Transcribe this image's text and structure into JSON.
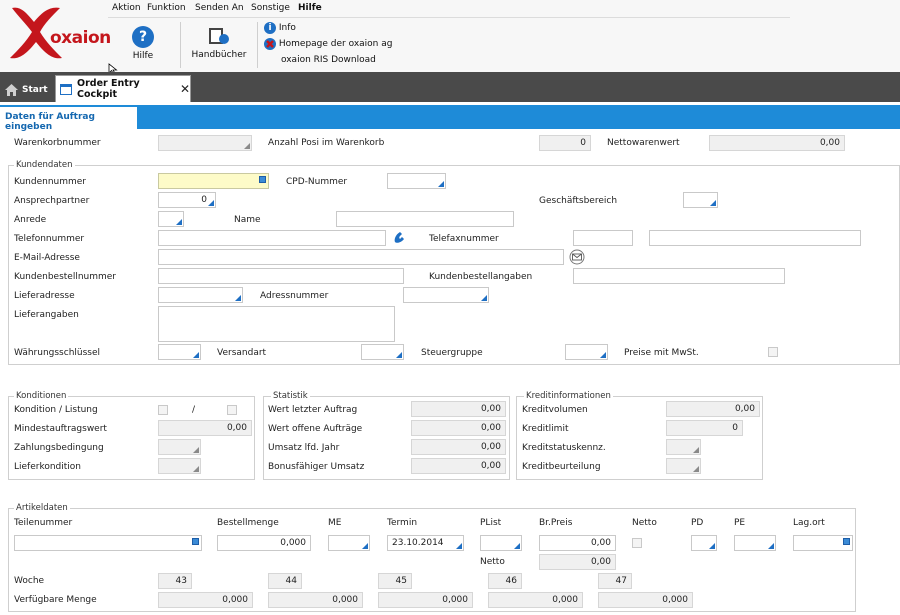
{
  "brand": {
    "logo_text": "oxaion"
  },
  "menu": [
    "Aktion",
    "Funktion",
    "Senden An",
    "Sonstige",
    "Hilfe"
  ],
  "ribbon": {
    "hilfe": "Hilfe",
    "handbuecher": "Handbücher",
    "links": [
      "Info",
      "Homepage der oxaion ag",
      "oxaion RIS Download"
    ]
  },
  "tabs": {
    "start": "Start",
    "active": "Order Entry Cockpit"
  },
  "section_title": "Daten für Auftrag eingeben",
  "top": {
    "warenkorbnummer": "Warenkorbnummer",
    "anzahl_label": "Anzahl Posi im Warenkorb",
    "anzahl_value": "0",
    "nettowert_label": "Nettowarenwert",
    "nettowert_value": "0,00"
  },
  "kunden": {
    "title": "Kundendaten",
    "kundennummer": "Kundennummer",
    "cpd": "CPD-Nummer",
    "ansprechpartner": "Ansprechpartner",
    "ansprechpartner_value": "0",
    "geschaeftsbereich": "Geschäftsbereich",
    "anrede": "Anrede",
    "name": "Name",
    "telefon": "Telefonnummer",
    "telefax": "Telefaxnummer",
    "email": "E-Mail-Adresse",
    "bestellnummer": "Kundenbestellnummer",
    "bestellangaben": "Kundenbestellangaben",
    "lieferadresse": "Lieferadresse",
    "adressnummer": "Adressnummer",
    "lieferangaben": "Lieferangaben",
    "waehrung": "Währungsschlüssel",
    "versandart": "Versandart",
    "steuergruppe": "Steuergruppe",
    "preise_mwst": "Preise mit MwSt."
  },
  "konditionen": {
    "title": "Konditionen",
    "kondition_listung": "Kondition / Listung",
    "slash": "/",
    "mindest": "Mindestauftragswert",
    "mindest_value": "0,00",
    "zahlung": "Zahlungsbedingung",
    "liefer": "Lieferkondition"
  },
  "statistik": {
    "title": "Statistik",
    "rows": [
      {
        "label": "Wert letzter Auftrag",
        "value": "0,00"
      },
      {
        "label": "Wert offene Aufträge",
        "value": "0,00"
      },
      {
        "label": "Umsatz lfd. Jahr",
        "value": "0,00"
      },
      {
        "label": "Bonusfähiger Umsatz",
        "value": "0,00"
      }
    ]
  },
  "kredit": {
    "title": "Kreditinformationen",
    "volumen": "Kreditvolumen",
    "volumen_value": "0,00",
    "limit": "Kreditlimit",
    "limit_value": "0",
    "status": "Kreditstatuskennz.",
    "beurteilung": "Kreditbeurteilung"
  },
  "artikel": {
    "title": "Artikeldaten",
    "teilenummer": "Teilenummer",
    "bestellmenge": "Bestellmenge",
    "bestellmenge_value": "0,000",
    "me": "ME",
    "termin": "Termin",
    "termin_value": "23.10.2014",
    "plist": "PList",
    "brpreis": "Br.Preis",
    "brpreis_value": "0,00",
    "netto": "Netto",
    "netto_value": "0,00",
    "pd": "PD",
    "pe": "PE",
    "lagort": "Lag.ort",
    "woche": "Woche",
    "verfuegbar": "Verfügbare Menge",
    "weeks": [
      "43",
      "44",
      "45",
      "46",
      "47"
    ],
    "qty": [
      "0,000",
      "0,000",
      "0,000",
      "0,000",
      "0,000"
    ]
  },
  "colors": {
    "accent": "#1e8bd8",
    "brand_red": "#c4161c",
    "tabbar": "#4a4a4a"
  }
}
